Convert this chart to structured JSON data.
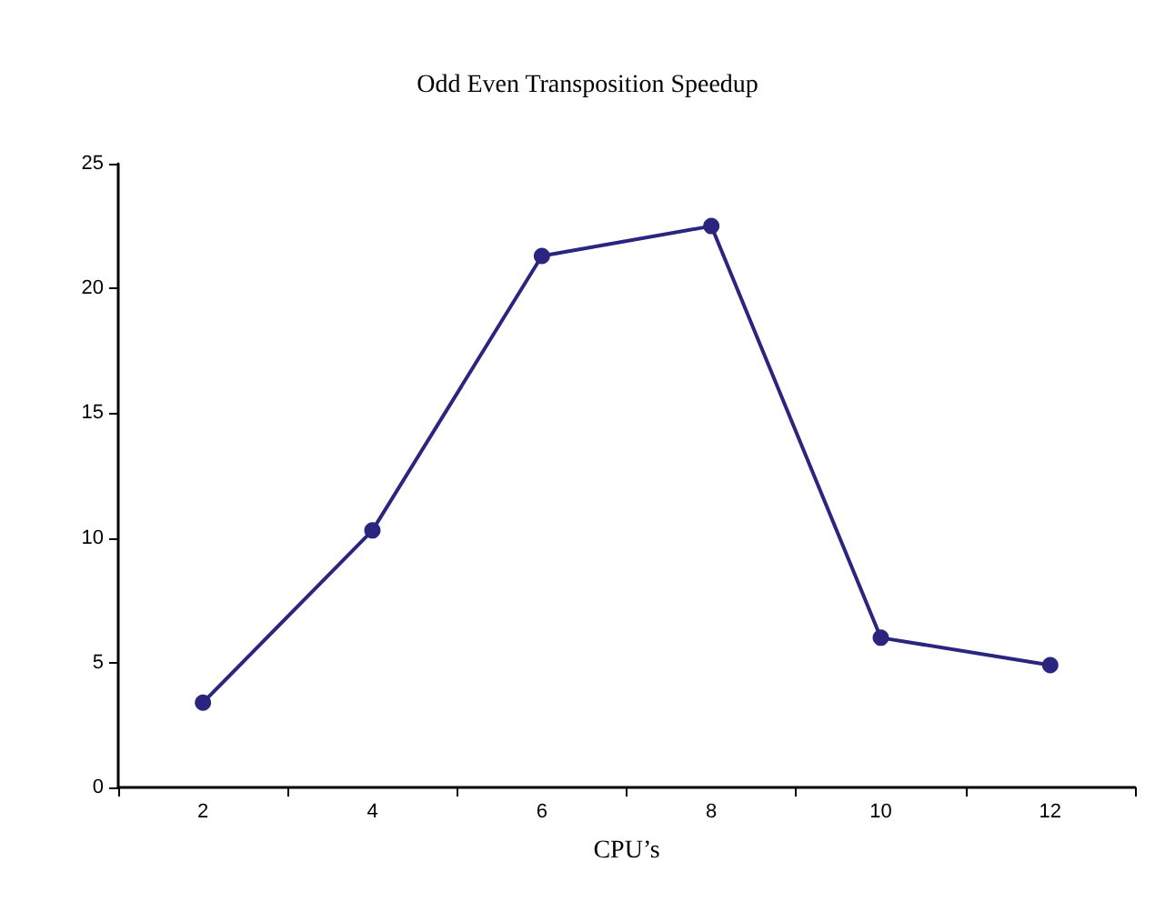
{
  "chart_data": {
    "type": "line",
    "title": "Odd Even Transposition Speedup",
    "xlabel": "CPU’s",
    "categories": [
      "2",
      "4",
      "6",
      "8",
      "10",
      "12"
    ],
    "series": [
      {
        "color": "#2b2580",
        "values": [
          3.4,
          10.3,
          21.3,
          22.5,
          6.0,
          4.9
        ]
      }
    ],
    "ylim": [
      0,
      25
    ],
    "yticks": [
      0,
      5,
      10,
      15,
      20,
      25
    ],
    "grid": false,
    "marker": "circle",
    "line_style": "solid"
  }
}
